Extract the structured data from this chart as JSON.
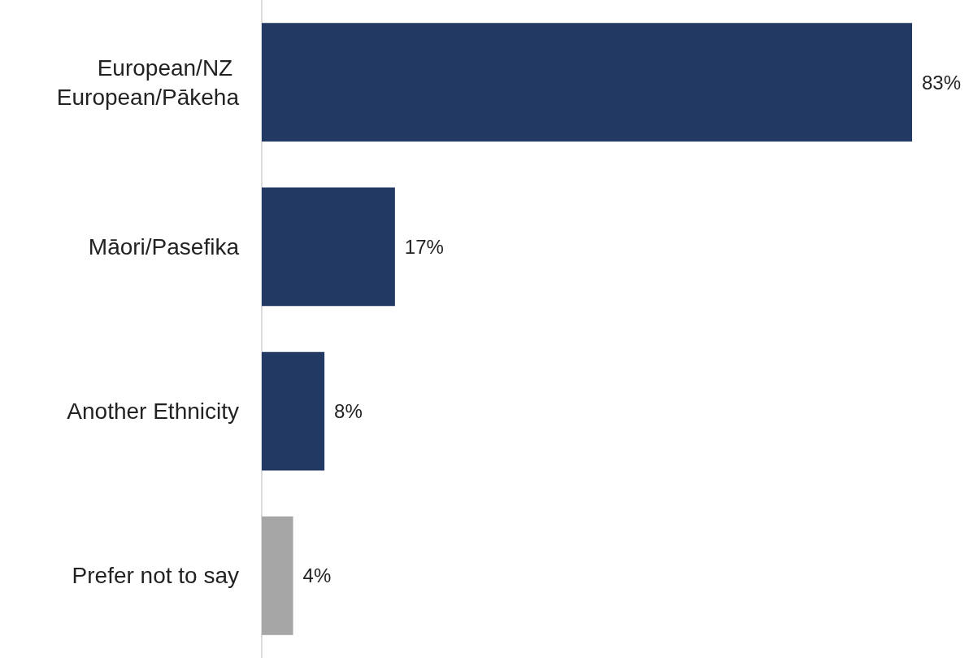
{
  "chart_data": {
    "type": "bar",
    "orientation": "horizontal",
    "categories": [
      "European/NZ European/Pākeha",
      "Māori/Pasefika",
      "Another Ethnicity",
      "Prefer not to say"
    ],
    "values": [
      83,
      17,
      8,
      4
    ],
    "colors": [
      "#223963",
      "#223963",
      "#223963",
      "#a6a6a6"
    ],
    "value_labels": [
      "83%",
      "17%",
      "8%",
      "4%"
    ]
  }
}
